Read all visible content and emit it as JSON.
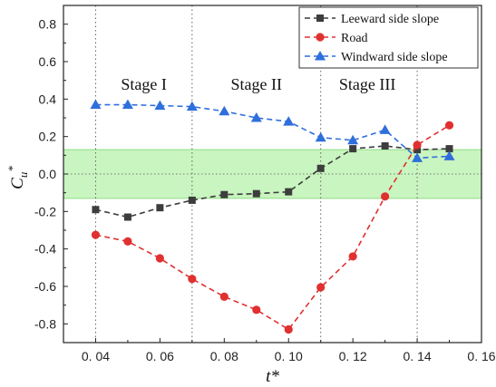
{
  "chart_data": {
    "type": "line",
    "xlabel": "t*",
    "ylabel": "Cu*",
    "xlim": [
      0.03,
      0.16
    ],
    "ylim": [
      -0.9,
      0.9
    ],
    "x_ticks": [
      0.04,
      0.06,
      0.08,
      0.1,
      0.12,
      0.14,
      0.16
    ],
    "x_tick_labels": [
      "0. 04",
      "0. 06",
      "0. 08",
      "0. 10",
      "0. 12",
      "0. 14",
      "0. 16"
    ],
    "y_ticks": [
      -0.8,
      -0.6,
      -0.4,
      -0.2,
      0.0,
      0.2,
      0.4,
      0.6,
      0.8
    ],
    "y_tick_labels": [
      "-0.8",
      "-0.6",
      "-0.4",
      "-0.2",
      "0.0",
      "0.2",
      "0.4",
      "0.6",
      "0.8"
    ],
    "x": [
      0.04,
      0.05,
      0.06,
      0.07,
      0.08,
      0.09,
      0.1,
      0.11,
      0.12,
      0.13,
      0.14,
      0.15
    ],
    "series": [
      {
        "name": "Leeward side slope",
        "color": "#3d3d3d",
        "marker": "square",
        "values": [
          -0.19,
          -0.23,
          -0.18,
          -0.14,
          -0.11,
          -0.105,
          -0.095,
          0.03,
          0.135,
          0.15,
          0.13,
          0.135
        ]
      },
      {
        "name": "Road",
        "color": "#e03030",
        "marker": "circle",
        "values": [
          -0.325,
          -0.36,
          -0.45,
          -0.56,
          -0.655,
          -0.725,
          -0.83,
          -0.605,
          -0.44,
          -0.12,
          0.155,
          0.26
        ]
      },
      {
        "name": "Windward side slope",
        "color": "#2f6fdc",
        "marker": "triangle",
        "values": [
          0.37,
          0.37,
          0.365,
          0.36,
          0.335,
          0.3,
          0.28,
          0.195,
          0.18,
          0.235,
          0.085,
          0.095
        ]
      }
    ],
    "band": {
      "from": -0.13,
      "to": 0.13,
      "color": "#c9f5c0"
    },
    "stage_dividers": [
      0.04,
      0.07,
      0.11,
      0.14
    ],
    "stages": [
      {
        "label": "Stage I",
        "x": 0.055,
        "y": 0.45
      },
      {
        "label": "Stage II",
        "x": 0.09,
        "y": 0.45
      },
      {
        "label": "Stage III",
        "x": 0.1245,
        "y": 0.45
      }
    ],
    "legend_position": "top-right",
    "grid": false
  }
}
